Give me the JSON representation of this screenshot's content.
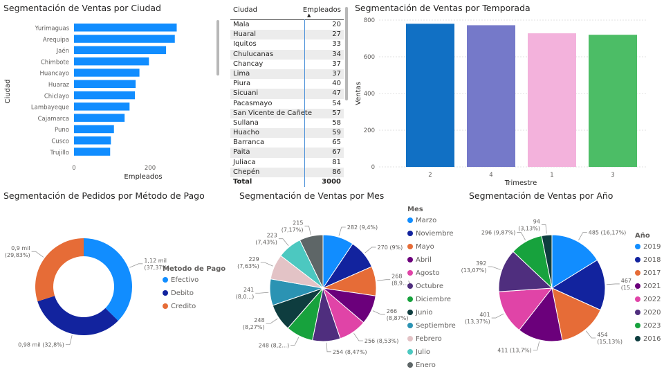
{
  "chart_data": [
    {
      "id": "ciudad",
      "type": "bar",
      "orientation": "horizontal",
      "title": "Segmentación de Ventas por Ciudad",
      "xlabel": "Empleados",
      "ylabel": "Ciudad",
      "categories": [
        "Yurimaguas",
        "Arequipa",
        "Jaén",
        "Chimbote",
        "Huancayo",
        "Huaraz",
        "Chiclayo",
        "Lambayeque",
        "Cajamarca",
        "Puno",
        "Cusco",
        "Trujillo"
      ],
      "values": [
        270,
        265,
        242,
        197,
        172,
        162,
        160,
        146,
        133,
        105,
        97,
        95
      ],
      "xticks": [
        "0",
        "200"
      ],
      "xlim": [
        0,
        400
      ],
      "color": "#118DFF"
    },
    {
      "id": "tabla",
      "type": "table",
      "columns": [
        "Ciudad",
        "Empleados"
      ],
      "rows": [
        [
          "Mala",
          "20"
        ],
        [
          "Huaral",
          "27"
        ],
        [
          "Iquitos",
          "33"
        ],
        [
          "Chulucanas",
          "34"
        ],
        [
          "Chancay",
          "37"
        ],
        [
          "Lima",
          "37"
        ],
        [
          "Piura",
          "40"
        ],
        [
          "Sicuani",
          "47"
        ],
        [
          "Pacasmayo",
          "54"
        ],
        [
          "San Vicente de Cañete",
          "57"
        ],
        [
          "Sullana",
          "58"
        ],
        [
          "Huacho",
          "59"
        ],
        [
          "Barranca",
          "65"
        ],
        [
          "Paita",
          "67"
        ],
        [
          "Juliaca",
          "81"
        ],
        [
          "Chepén",
          "86"
        ]
      ],
      "total": [
        "Total",
        "3000"
      ]
    },
    {
      "id": "temporada",
      "type": "bar",
      "title": "Segmentación de Ventas por Temporada",
      "xlabel": "Trimestre",
      "ylabel": "Ventas",
      "categories": [
        "2",
        "4",
        "1",
        "3"
      ],
      "values": [
        780,
        772,
        728,
        720
      ],
      "colors": [
        "#1170C4",
        "#7579C9",
        "#F3B2DC",
        "#4CBD66"
      ],
      "ylim": [
        0,
        800
      ],
      "yticks": [
        0,
        200,
        400,
        600,
        800
      ],
      "grid": true
    },
    {
      "id": "pago",
      "type": "pie",
      "donut": true,
      "title": "Segmentación de Pedidos por Método de Pago",
      "legend_title": "Metodo de Pago",
      "categories": [
        "Efectivo",
        "Debito",
        "Credito"
      ],
      "values": [
        1120,
        980,
        895
      ],
      "colors": [
        "#118DFF",
        "#12239E",
        "#E66C37"
      ],
      "labels": [
        [
          "1,12 mil",
          "(37,37%)"
        ],
        [
          "0,98 mil (32,8%)"
        ],
        [
          "0,9 mil",
          "(29,83%)"
        ]
      ]
    },
    {
      "id": "mes",
      "type": "pie",
      "title": "Segmentación de Ventas por Mes",
      "legend_title": "Mes",
      "categories": [
        "Marzo",
        "Noviembre",
        "Mayo",
        "Abril",
        "Agosto",
        "Octubre",
        "Diciembre",
        "Junio",
        "Septiembre",
        "Febrero",
        "Julio",
        "Enero"
      ],
      "values": [
        282,
        270,
        268,
        266,
        256,
        254,
        248,
        248,
        241,
        229,
        223,
        215
      ],
      "colors": [
        "#118DFF",
        "#12239E",
        "#E66C37",
        "#6B007B",
        "#E044A7",
        "#4F2E7E",
        "#17A23D",
        "#0E3D3F",
        "#2B93B3",
        "#E3C3C6",
        "#4CC8C0",
        "#5E6667"
      ],
      "labels": [
        [
          "282 (9,4%)"
        ],
        [
          "270 (9%)"
        ],
        [
          "268",
          "(8,9...)"
        ],
        [
          "266",
          "(8,87%)"
        ],
        [
          "256 (8,53%)"
        ],
        [
          "254 (8,47%)"
        ],
        [
          "248 (8,2...)"
        ],
        [
          "248",
          "(8,27%)"
        ],
        [
          "241",
          "(8,0...)"
        ],
        [
          "229",
          "(7,63%)"
        ],
        [
          "223",
          "(7,43%)"
        ],
        [
          "215",
          "(7,17%)"
        ]
      ]
    },
    {
      "id": "anio",
      "type": "pie",
      "title": "Segmentación de Ventas por Año",
      "legend_title": "Año",
      "categories": [
        "2019",
        "2018",
        "2017",
        "2021",
        "2022",
        "2020",
        "2023",
        "2016"
      ],
      "values": [
        485,
        467,
        454,
        411,
        401,
        392,
        296,
        94
      ],
      "colors": [
        "#118DFF",
        "#12239E",
        "#E66C37",
        "#6B007B",
        "#E044A7",
        "#4F2E7E",
        "#17A23D",
        "#0E3D3F"
      ],
      "labels": [
        [
          "485 (16,17%)"
        ],
        [
          "467",
          "(15,..."
        ],
        [
          "454",
          "(15,13%)"
        ],
        [
          "411 (13,7%)"
        ],
        [
          "401",
          "(13,37%)"
        ],
        [
          "392",
          "(13,07%)"
        ],
        [
          "296 (9,87%)"
        ],
        [
          "94",
          "(3,13%)"
        ]
      ]
    }
  ]
}
